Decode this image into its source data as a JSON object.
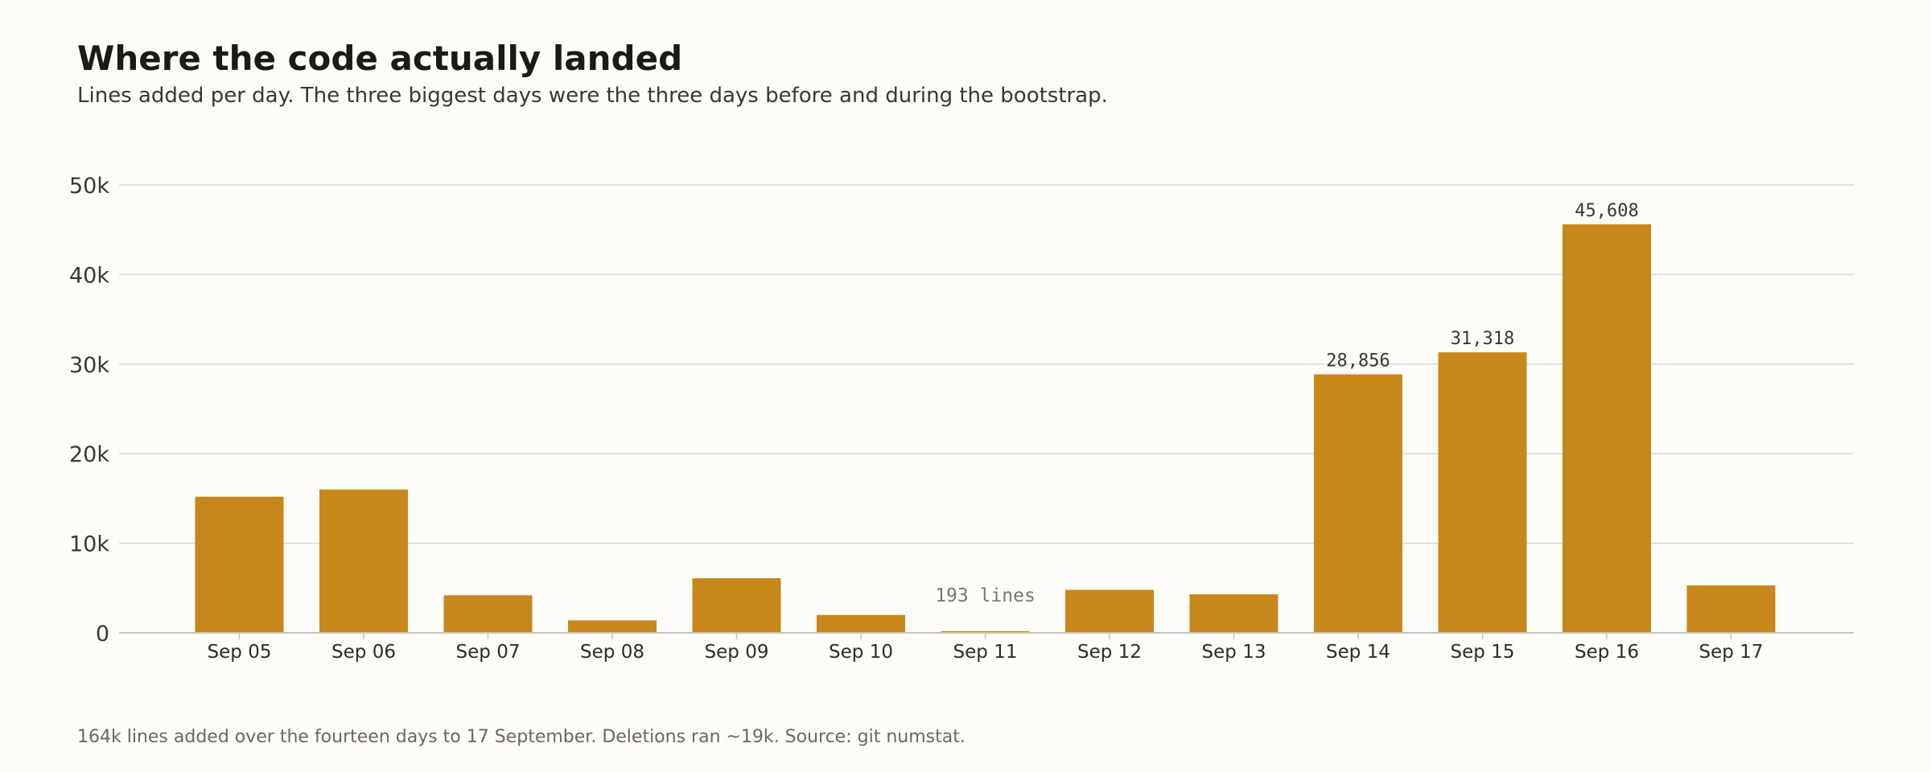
{
  "header": {
    "title": "Where the code actually landed",
    "subtitle": "Lines added per day. The three biggest days were the three days before and during the bootstrap."
  },
  "footer": {
    "note": "164k lines added over the fourteen days to 17 September. Deletions ran ~19k. Source: git numstat."
  },
  "colors": {
    "bar": "#c8871b",
    "grid": "#dcd9d2",
    "axis": "#c9c5bd",
    "background": "#fdfcf8"
  },
  "chart_data": {
    "type": "bar",
    "title": "Where the code actually landed",
    "subtitle": "Lines added per day. The three biggest days were the three days before and during the bootstrap.",
    "xlabel": "",
    "ylabel": "",
    "categories": [
      "Sep 05",
      "Sep 06",
      "Sep 07",
      "Sep 08",
      "Sep 09",
      "Sep 10",
      "Sep 11",
      "Sep 12",
      "Sep 13",
      "Sep 14",
      "Sep 15",
      "Sep 16",
      "Sep 17"
    ],
    "values": [
      15200,
      16000,
      4200,
      1400,
      6100,
      2000,
      193,
      4800,
      4300,
      28856,
      31318,
      45608,
      5300
    ],
    "ylim": [
      0,
      50000
    ],
    "yticks": [
      0,
      10000,
      20000,
      30000,
      40000,
      50000
    ],
    "ytick_labels": [
      "0",
      "10k",
      "20k",
      "30k",
      "40k",
      "50k"
    ],
    "grid": true,
    "data_labels": [
      {
        "category": "Sep 14",
        "text": "28,856"
      },
      {
        "category": "Sep 15",
        "text": "31,318"
      },
      {
        "category": "Sep 16",
        "text": "45,608"
      }
    ],
    "annotations": [
      {
        "category": "Sep 11",
        "text": "193 lines"
      }
    ]
  }
}
